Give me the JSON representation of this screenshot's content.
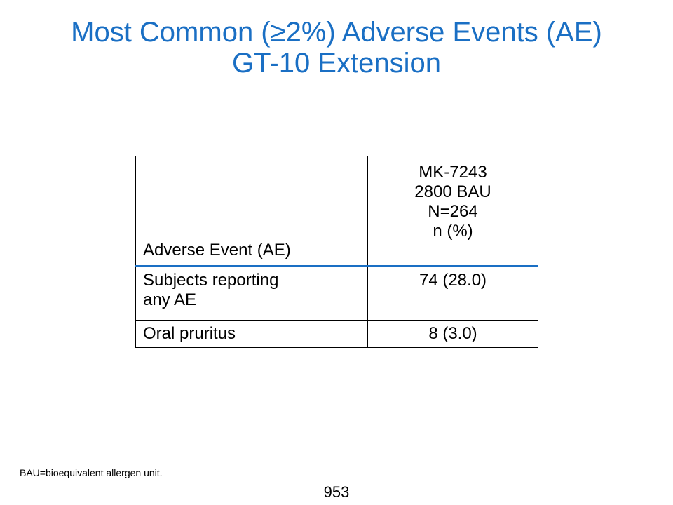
{
  "slide": {
    "title_line1": "Most Common (≥2%) Adverse Events (AE)",
    "title_line2": "GT-10 Extension",
    "title_color": "#1a6fc4",
    "header_rule_color": "#1a6fc4"
  },
  "table": {
    "header": {
      "ae_col": "Adverse Event (AE)",
      "value_col_lines": [
        "MK-7243",
        "2800 BAU",
        "N=264",
        "n (%)"
      ]
    },
    "rows": [
      {
        "event_lines": [
          "Subjects reporting",
          "any AE"
        ],
        "value": "74 (28.0)"
      },
      {
        "event_lines": [
          "Oral pruritus"
        ],
        "value": "8 (3.0)"
      }
    ]
  },
  "footnote": "BAU=bioequivalent allergen unit.",
  "page_number": "953"
}
